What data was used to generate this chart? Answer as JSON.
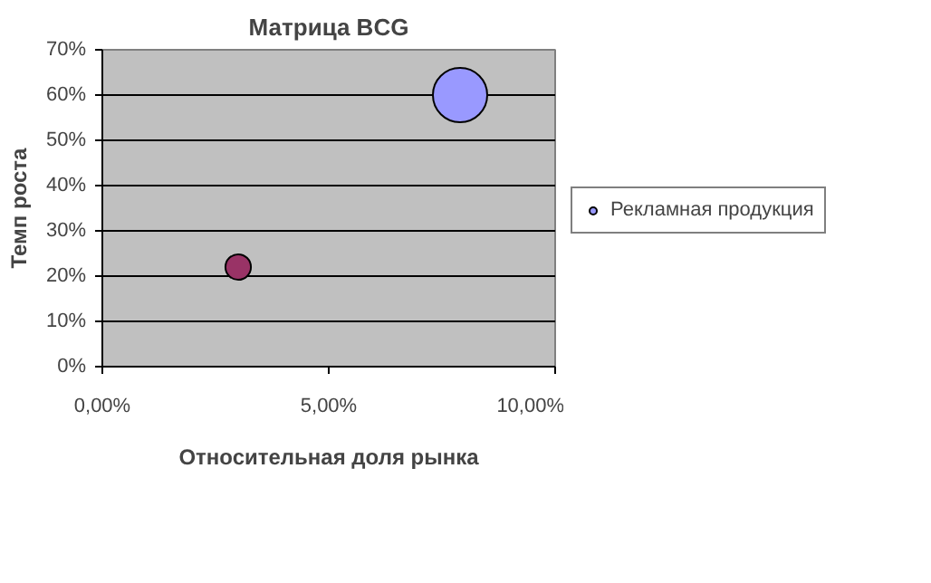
{
  "chart_data": {
    "type": "bubble",
    "title": "Матрица BCG",
    "xlabel": "Относительная доля рынка",
    "ylabel": "Темп роста",
    "x": [
      7.9,
      3.0
    ],
    "series": [
      {
        "name": "Рекламная продукция",
        "color": "#9999ff",
        "colors": [
          "#9999ff",
          "#993366"
        ],
        "values": [
          60,
          22
        ],
        "sizes": [
          1,
          0.22
        ]
      }
    ],
    "xlim": [
      0,
      10
    ],
    "xticks": [
      {
        "value": 0,
        "label": "0,00%"
      },
      {
        "value": 5,
        "label": "5,00%"
      },
      {
        "value": 10,
        "label": "10,00%"
      }
    ],
    "ylim": [
      0,
      70
    ],
    "yticks": [
      {
        "value": 0,
        "label": "0%"
      },
      {
        "value": 10,
        "label": "10%"
      },
      {
        "value": 20,
        "label": "20%"
      },
      {
        "value": 30,
        "label": "30%"
      },
      {
        "value": 40,
        "label": "40%"
      },
      {
        "value": 50,
        "label": "50%"
      },
      {
        "value": 60,
        "label": "60%"
      },
      {
        "value": 70,
        "label": "70%"
      }
    ],
    "grid": "y",
    "legend": "right",
    "marker": "circle"
  }
}
